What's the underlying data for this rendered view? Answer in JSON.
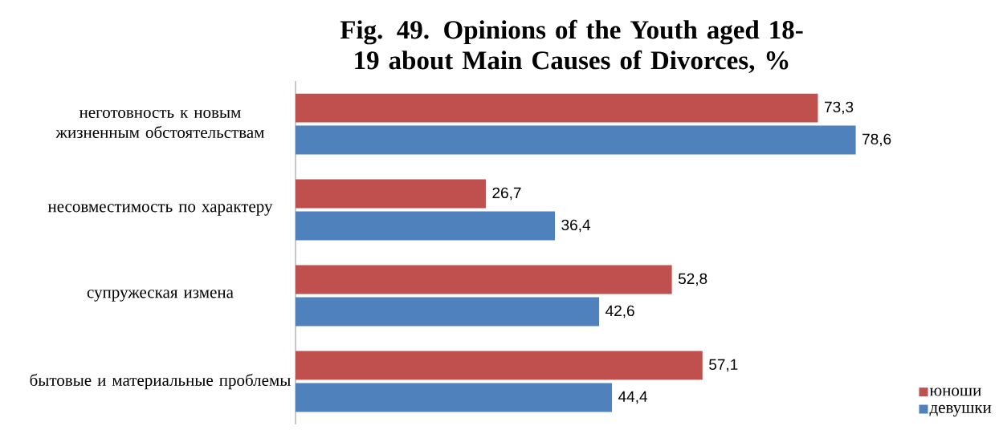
{
  "chart_data": {
    "type": "bar",
    "orientation": "horizontal",
    "title": "Fig. 49. Opinions of the Youth aged 18-19 about Main Causes of Divorces, %",
    "categories": [
      "неготовность к новым жизненным обстоятельствам",
      "несовместимость по характеру",
      "супружеская измена",
      "бытовые и материальные проблемы"
    ],
    "series": [
      {
        "name": "юноши",
        "color": "#c0504d",
        "values": [
          73.3,
          26.7,
          52.8,
          57.1
        ],
        "value_labels": [
          "73,3",
          "26,7",
          "52,8",
          "57,1"
        ]
      },
      {
        "name": "девушки",
        "color": "#4f81bd",
        "values": [
          78.6,
          36.4,
          42.6,
          44.4
        ],
        "value_labels": [
          "78,6",
          "36,4",
          "42,6",
          "44,4"
        ]
      }
    ],
    "legend": "bottom right",
    "tick_labels": "y"
  }
}
